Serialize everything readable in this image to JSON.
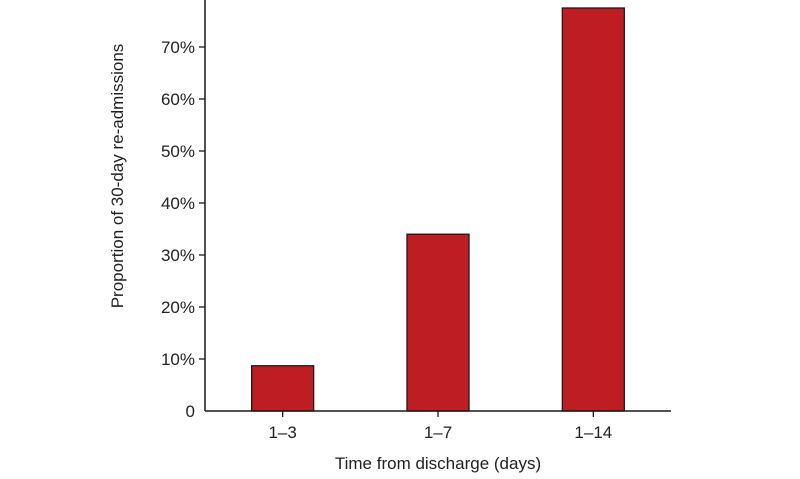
{
  "chart_data": {
    "type": "bar",
    "categories": [
      "1–3",
      "1–7",
      "1–14"
    ],
    "values": [
      8.7,
      34.0,
      77.5
    ],
    "xlabel": "Time from discharge (days)",
    "ylabel": "Proportion of 30-day re-admissions",
    "ylim": [
      0,
      80
    ],
    "yticks": [
      {
        "value": 0,
        "label": "0"
      },
      {
        "value": 10,
        "label": "10%"
      },
      {
        "value": 20,
        "label": "20%"
      },
      {
        "value": 30,
        "label": "30%"
      },
      {
        "value": 40,
        "label": "40%"
      },
      {
        "value": 50,
        "label": "50%"
      },
      {
        "value": 60,
        "label": "60%"
      },
      {
        "value": 70,
        "label": "70%"
      }
    ],
    "grid": false,
    "legend": "none",
    "bar_color": "#be1e23",
    "bar_edge_color": "#1a1a1a"
  }
}
